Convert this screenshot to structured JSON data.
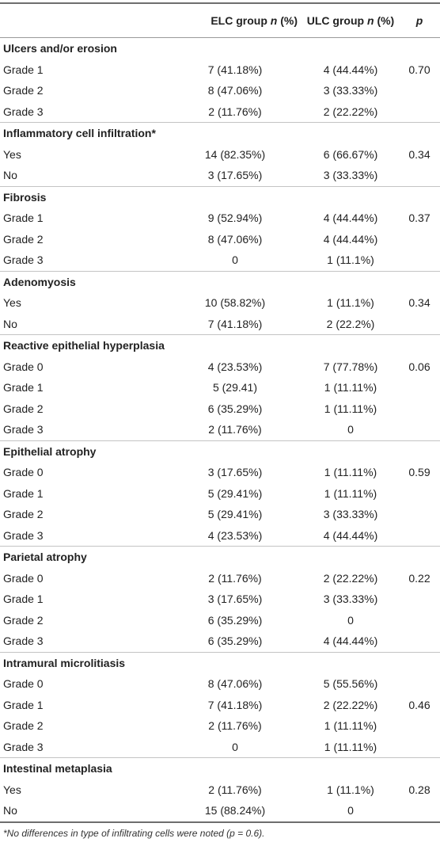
{
  "header": {
    "col1": "ELC group",
    "col2": "ULC group",
    "n_symbol": "n",
    "pct": "(%)",
    "p": "p"
  },
  "sections": [
    {
      "title": "Ulcers and/or erosion",
      "rows": [
        {
          "label": "Grade 1",
          "elc": "7 (41.18%)",
          "ulc": "4 (44.44%)",
          "p": "0.70"
        },
        {
          "label": "Grade 2",
          "elc": "8 (47.06%)",
          "ulc": "3 (33.33%)",
          "p": ""
        },
        {
          "label": "Grade 3",
          "elc": "2 (11.76%)",
          "ulc": "2 (22.22%)",
          "p": ""
        }
      ]
    },
    {
      "title": "Inflammatory cell infiltration*",
      "rows": [
        {
          "label": "Yes",
          "elc": "14 (82.35%)",
          "ulc": "6 (66.67%)",
          "p": "0.34"
        },
        {
          "label": "No",
          "elc": "3 (17.65%)",
          "ulc": "3 (33.33%)",
          "p": ""
        }
      ]
    },
    {
      "title": "Fibrosis",
      "rows": [
        {
          "label": "Grade 1",
          "elc": "9 (52.94%)",
          "ulc": "4 (44.44%)",
          "p": "0.37"
        },
        {
          "label": "Grade 2",
          "elc": "8 (47.06%)",
          "ulc": "4 (44.44%)",
          "p": ""
        },
        {
          "label": "Grade 3",
          "elc": "0",
          "ulc": "1 (11.1%)",
          "p": ""
        }
      ]
    },
    {
      "title": "Adenomyosis",
      "rows": [
        {
          "label": "Yes",
          "elc": "10 (58.82%)",
          "ulc": "1 (11.1%)",
          "p": "0.34"
        },
        {
          "label": "No",
          "elc": "7 (41.18%)",
          "ulc": "2 (22.2%)",
          "p": ""
        }
      ]
    },
    {
      "title": "Reactive epithelial hyperplasia",
      "rows": [
        {
          "label": "Grade 0",
          "elc": "4 (23.53%)",
          "ulc": "7 (77.78%)",
          "p": "0.06"
        },
        {
          "label": "Grade 1",
          "elc": "5 (29.41)",
          "ulc": "1 (11.11%)",
          "p": ""
        },
        {
          "label": "Grade 2",
          "elc": "6 (35.29%)",
          "ulc": "1 (11.11%)",
          "p": ""
        },
        {
          "label": "Grade 3",
          "elc": "2 (11.76%)",
          "ulc": "0",
          "p": ""
        }
      ]
    },
    {
      "title": "Epithelial atrophy",
      "rows": [
        {
          "label": "Grade 0",
          "elc": "3 (17.65%)",
          "ulc": "1 (11.11%)",
          "p": "0.59"
        },
        {
          "label": "Grade 1",
          "elc": "5 (29.41%)",
          "ulc": "1 (11.11%)",
          "p": ""
        },
        {
          "label": "Grade 2",
          "elc": "5 (29.41%)",
          "ulc": "3 (33.33%)",
          "p": ""
        },
        {
          "label": "Grade 3",
          "elc": "4 (23.53%)",
          "ulc": "4 (44.44%)",
          "p": ""
        }
      ]
    },
    {
      "title": "Parietal atrophy",
      "rows": [
        {
          "label": "Grade 0",
          "elc": "2 (11.76%)",
          "ulc": "2 (22.22%)",
          "p": "0.22"
        },
        {
          "label": "Grade 1",
          "elc": "3 (17.65%)",
          "ulc": "3 (33.33%)",
          "p": ""
        },
        {
          "label": "Grade 2",
          "elc": "6 (35.29%)",
          "ulc": "0",
          "p": ""
        },
        {
          "label": "Grade 3",
          "elc": "6 (35.29%)",
          "ulc": "4 (44.44%)",
          "p": ""
        }
      ]
    },
    {
      "title": "Intramural microlitiasis",
      "rows": [
        {
          "label": "Grade 0",
          "elc": "8 (47.06%)",
          "ulc": "5 (55.56%)",
          "p": ""
        },
        {
          "label": "Grade 1",
          "elc": "7 (41.18%)",
          "ulc": "2 (22.22%)",
          "p": "0.46"
        },
        {
          "label": "Grade 2",
          "elc": "2 (11.76%)",
          "ulc": "1 (11.11%)",
          "p": ""
        },
        {
          "label": "Grade 3",
          "elc": "0",
          "ulc": "1 (11.11%)",
          "p": ""
        }
      ]
    },
    {
      "title": "Intestinal metaplasia",
      "rows": [
        {
          "label": "Yes",
          "elc": "2 (11.76%)",
          "ulc": "1 (11.1%)",
          "p": "0.28"
        },
        {
          "label": "No",
          "elc": "15 (88.24%)",
          "ulc": "0",
          "p": ""
        }
      ]
    }
  ],
  "footnote": "*No differences in type of infiltrating cells were noted (p = 0.6)."
}
